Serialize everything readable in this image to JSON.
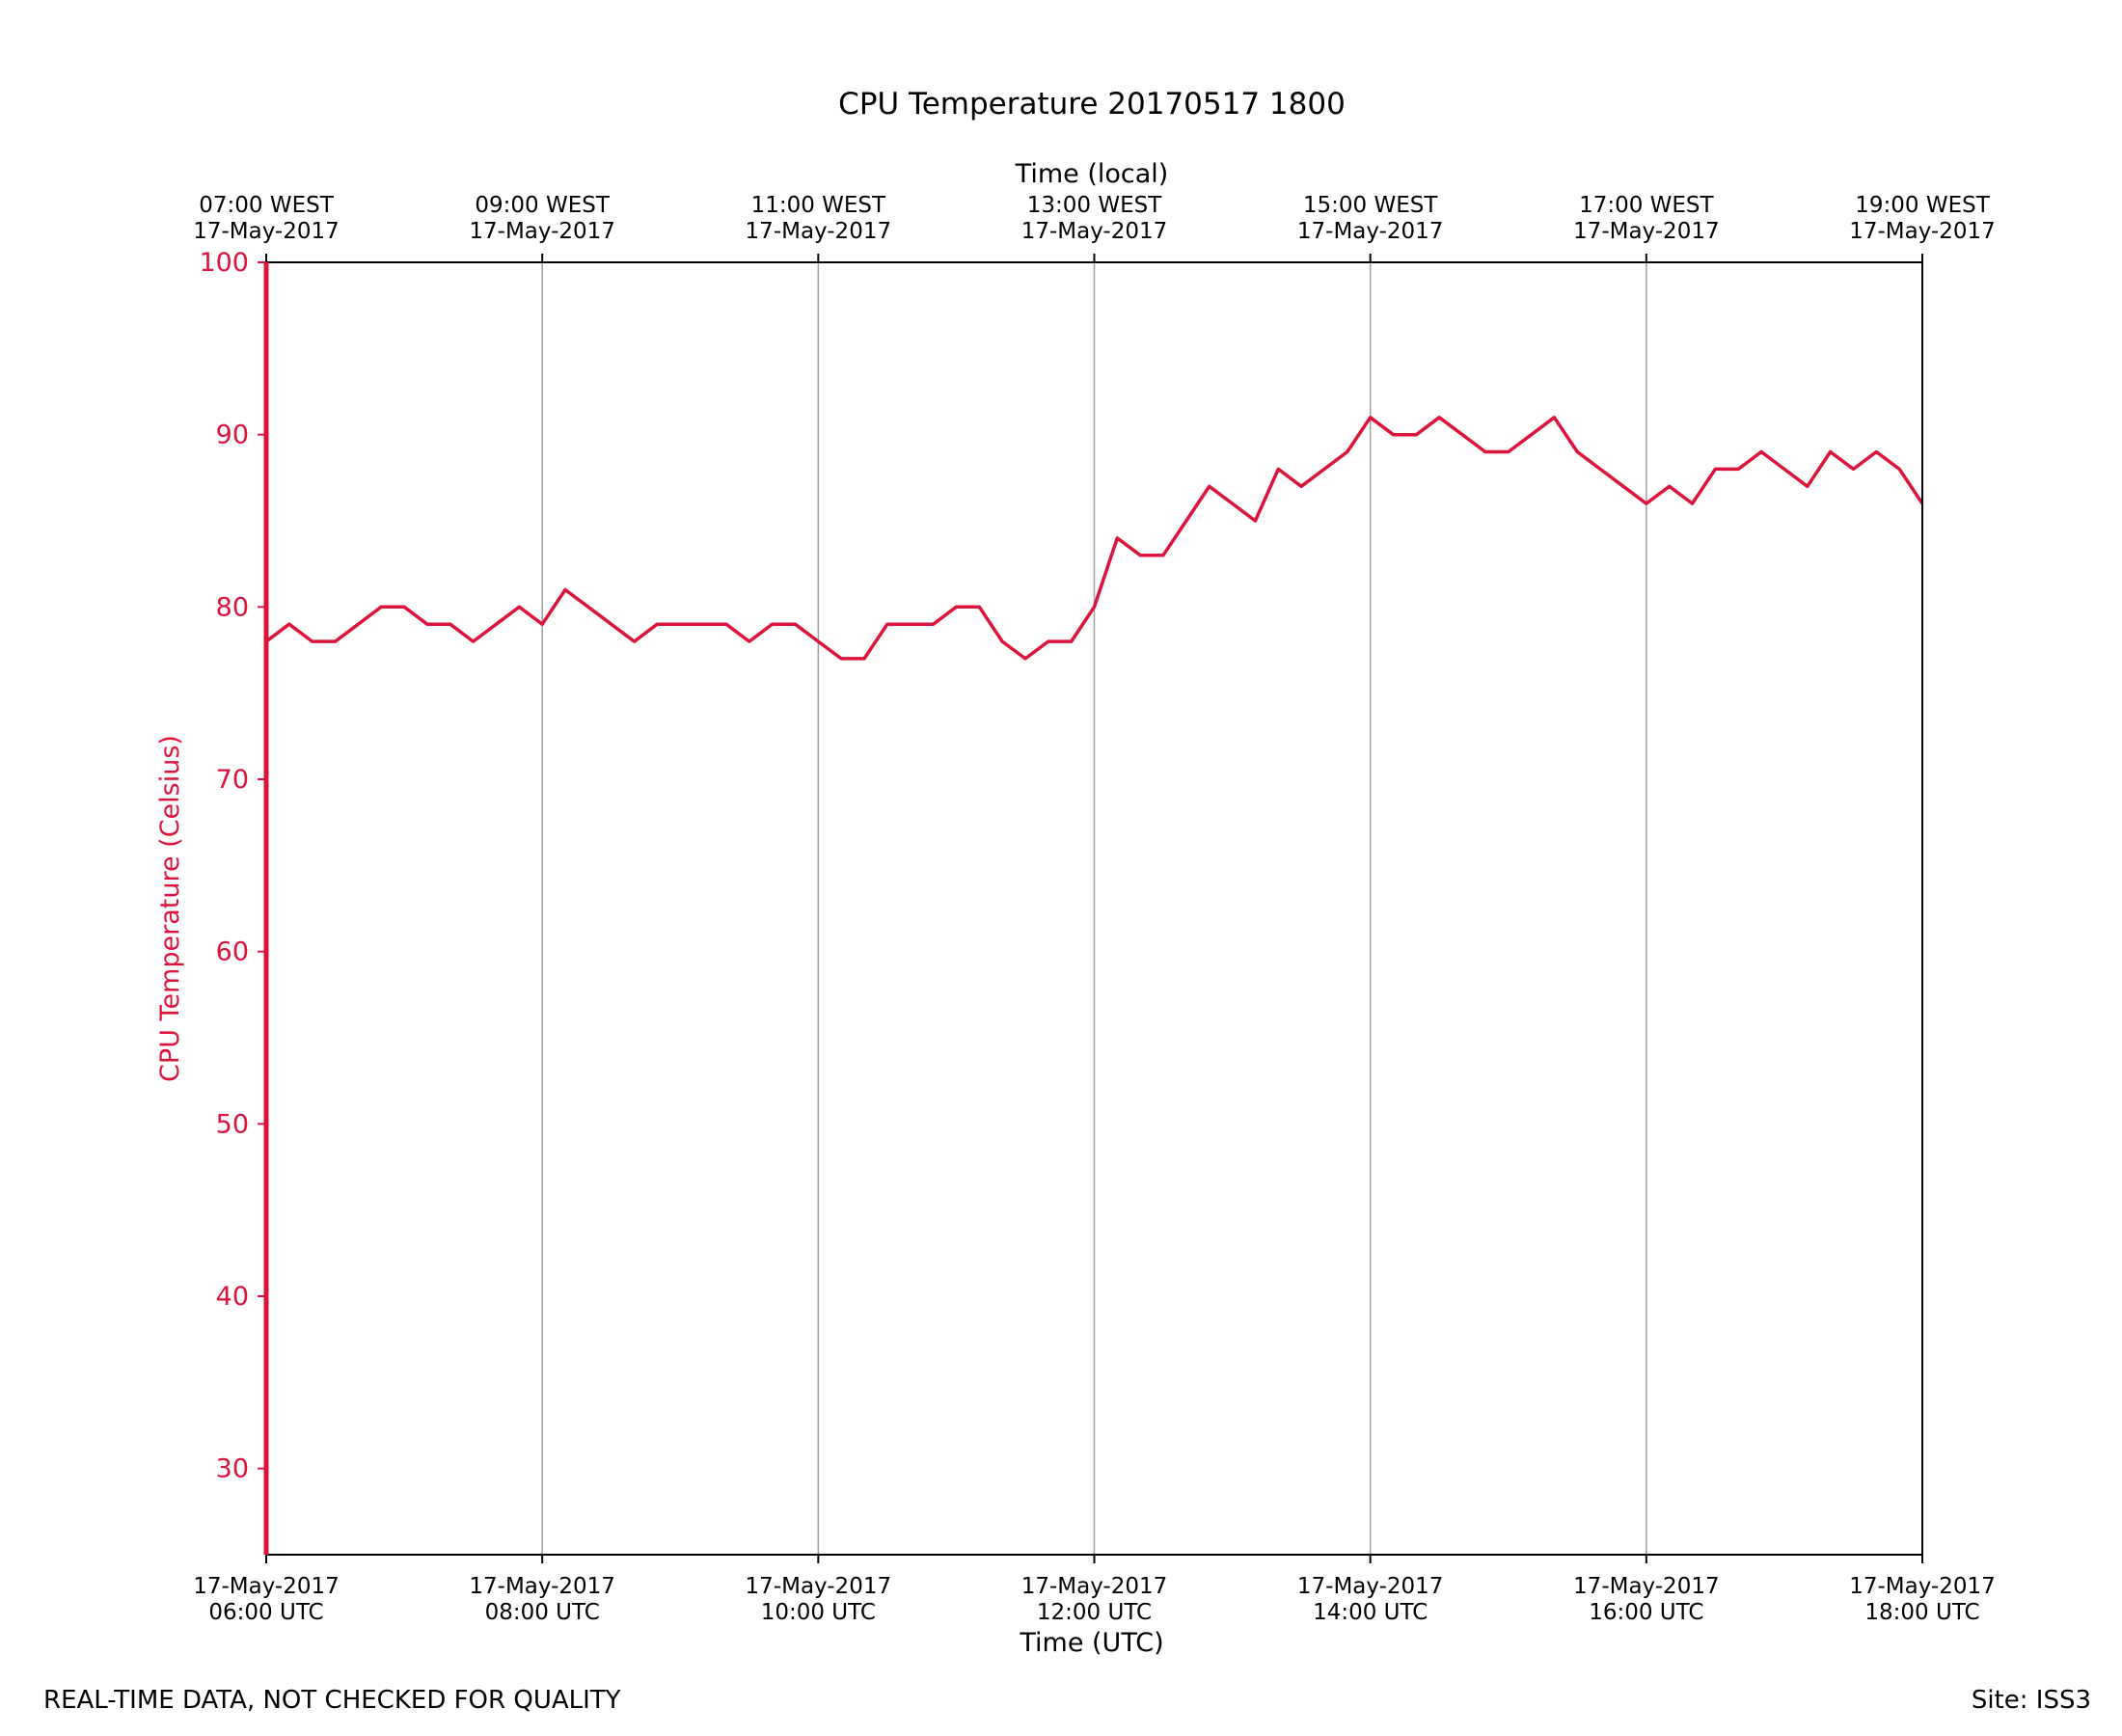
{
  "chart_data": {
    "type": "line",
    "title": "CPU Temperature 20170517 1800",
    "xlabel": "Time (UTC)",
    "x2label": "Time (local)",
    "ylabel": "CPU Temperature (Celsius)",
    "ylim": [
      25,
      100
    ],
    "yticks": [
      30,
      40,
      50,
      60,
      70,
      80,
      90,
      100
    ],
    "xlim": [
      "2017-05-17 06:00",
      "2017-05-17 18:00"
    ],
    "xticks": [
      {
        "date": "17-May-2017",
        "time": "06:00 UTC"
      },
      {
        "date": "17-May-2017",
        "time": "08:00 UTC"
      },
      {
        "date": "17-May-2017",
        "time": "10:00 UTC"
      },
      {
        "date": "17-May-2017",
        "time": "12:00 UTC"
      },
      {
        "date": "17-May-2017",
        "time": "14:00 UTC"
      },
      {
        "date": "17-May-2017",
        "time": "16:00 UTC"
      },
      {
        "date": "17-May-2017",
        "time": "18:00 UTC"
      }
    ],
    "x2ticks": [
      {
        "time": "07:00 WEST",
        "date": "17-May-2017"
      },
      {
        "time": "09:00 WEST",
        "date": "17-May-2017"
      },
      {
        "time": "11:00 WEST",
        "date": "17-May-2017"
      },
      {
        "time": "13:00 WEST",
        "date": "17-May-2017"
      },
      {
        "time": "15:00 WEST",
        "date": "17-May-2017"
      },
      {
        "time": "17:00 WEST",
        "date": "17-May-2017"
      },
      {
        "time": "19:00 WEST",
        "date": "17-May-2017"
      }
    ],
    "grid": "vertical",
    "series": [
      {
        "color": "#dc143c",
        "x": [
          "06:00",
          "06:10",
          "06:20",
          "06:30",
          "06:40",
          "06:50",
          "07:00",
          "07:10",
          "07:20",
          "07:30",
          "07:40",
          "07:50",
          "08:00",
          "08:10",
          "08:20",
          "08:30",
          "08:40",
          "08:50",
          "09:00",
          "09:10",
          "09:20",
          "09:30",
          "09:40",
          "09:50",
          "10:00",
          "10:10",
          "10:20",
          "10:30",
          "10:40",
          "10:50",
          "11:00",
          "11:10",
          "11:20",
          "11:30",
          "11:40",
          "11:50",
          "12:00",
          "12:10",
          "12:20",
          "12:30",
          "12:40",
          "12:50",
          "13:00",
          "13:10",
          "13:20",
          "13:30",
          "13:40",
          "13:50",
          "14:00",
          "14:10",
          "14:20",
          "14:30",
          "14:40",
          "14:50",
          "15:00",
          "15:10",
          "15:20",
          "15:30",
          "15:40",
          "15:50",
          "16:00",
          "16:10",
          "16:20",
          "16:30",
          "16:40",
          "16:50",
          "17:00",
          "17:10",
          "17:20",
          "17:30",
          "17:40",
          "17:50",
          "18:00"
        ],
        "y": [
          78,
          79,
          78,
          78,
          79,
          80,
          80,
          79,
          79,
          78,
          79,
          80,
          79,
          81,
          80,
          79,
          78,
          79,
          79,
          79,
          79,
          78,
          79,
          79,
          78,
          77,
          77,
          79,
          79,
          79,
          80,
          80,
          78,
          77,
          78,
          78,
          80,
          84,
          83,
          83,
          85,
          87,
          86,
          85,
          88,
          87,
          88,
          89,
          91,
          90,
          90,
          91,
          90,
          89,
          89,
          90,
          91,
          89,
          88,
          87,
          86,
          87,
          86,
          88,
          88,
          89,
          88,
          87,
          89,
          88,
          89,
          88,
          86
        ],
        "name": ""
      }
    ]
  },
  "footer": {
    "left_note": "REAL-TIME DATA, NOT CHECKED FOR QUALITY",
    "right_note": "Site: ISS3"
  }
}
